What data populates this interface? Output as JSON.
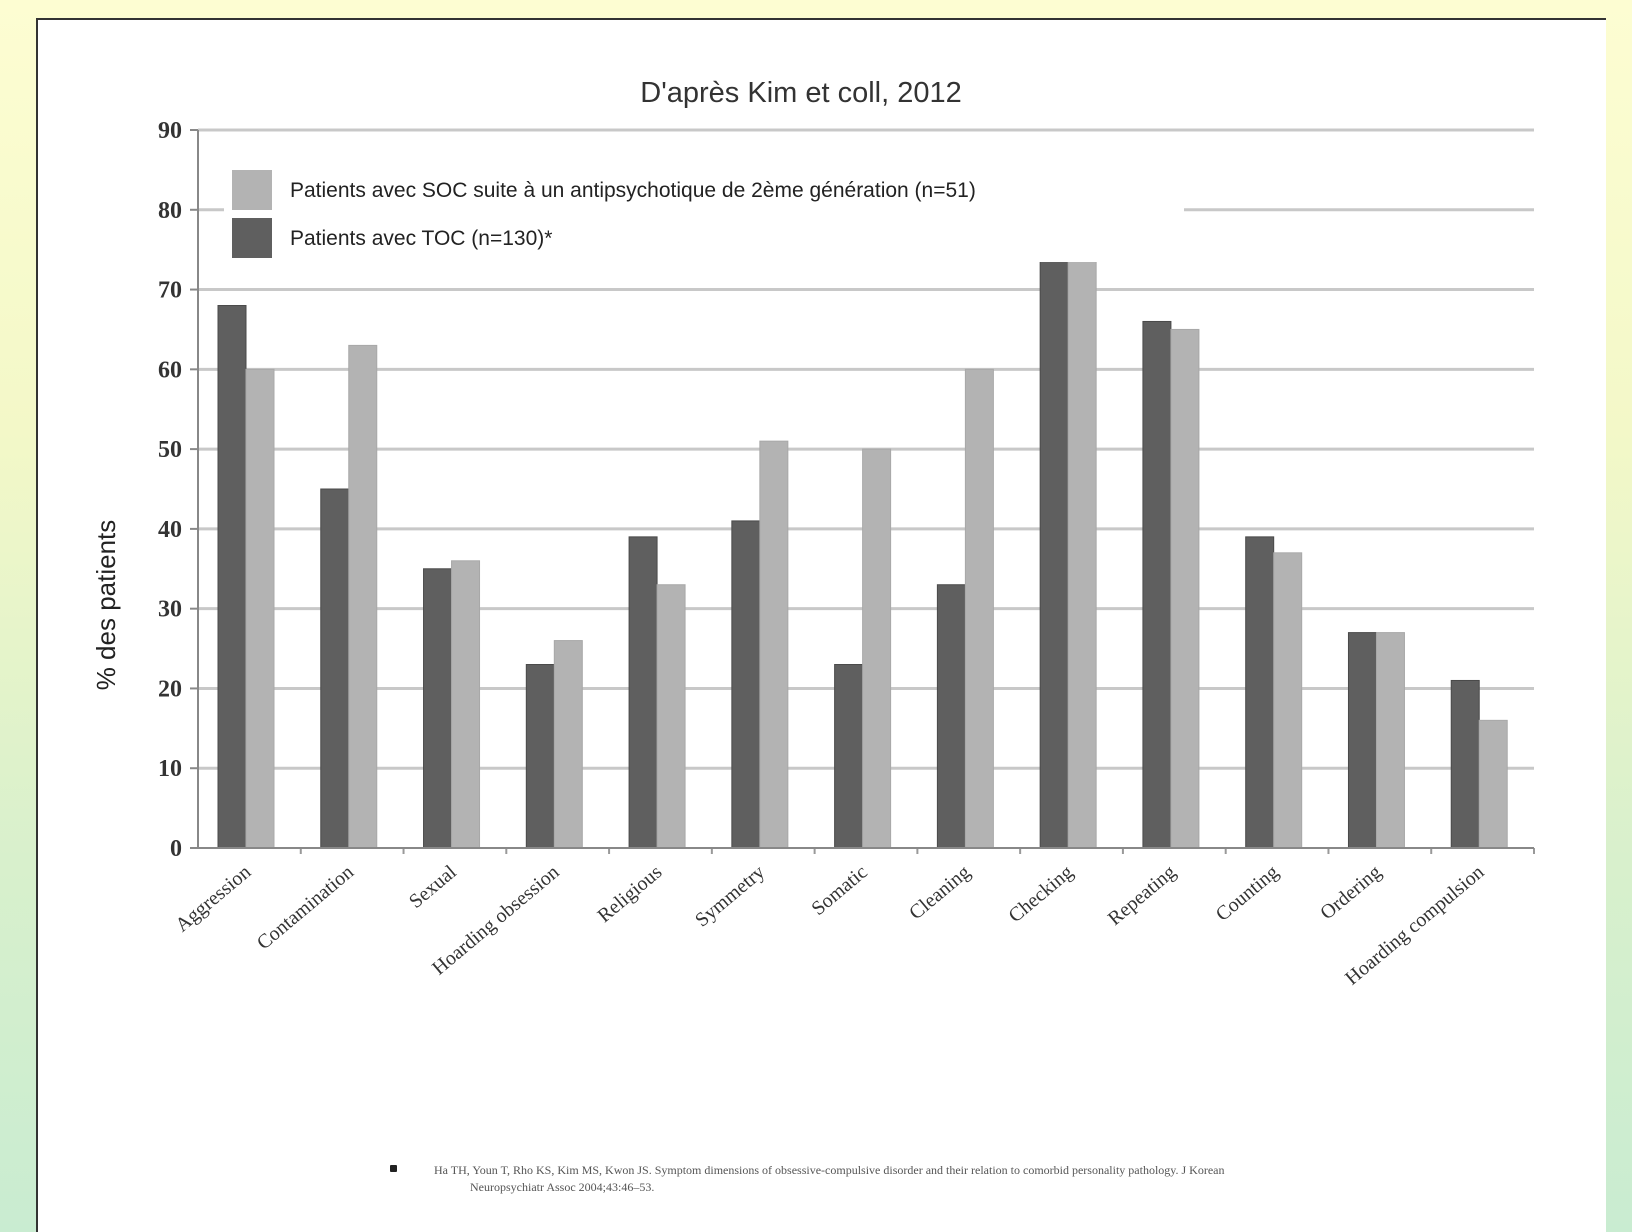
{
  "chart_data": {
    "type": "bar",
    "title": "D'après Kim et coll, 2012",
    "ylabel": "% des patients",
    "xlabel": "",
    "ylim": [
      0,
      90
    ],
    "yticks": [
      0,
      10,
      20,
      30,
      40,
      50,
      60,
      70,
      80,
      90
    ],
    "grid": true,
    "legend_position": "top-left",
    "categories": [
      "Aggression",
      "Contamination",
      "Sexual",
      "Hoarding obsession",
      "Religious",
      "Symmetry",
      "Somatic",
      "Cleaning",
      "Checking",
      "Repeating",
      "Counting",
      "Ordering",
      "Hoarding compulsion"
    ],
    "series": [
      {
        "name": "Patients avec TOC (n=130)*",
        "color": "#5f5f5f",
        "values": [
          68,
          45,
          35,
          23,
          39,
          41,
          23,
          33,
          74,
          66,
          39,
          27,
          21
        ]
      },
      {
        "name": "Patients avec SOC suite à un antipsychotique de 2ème génération (n=51)",
        "color": "#b3b3b3",
        "values": [
          60,
          63,
          36,
          26,
          33,
          51,
          50,
          60,
          80,
          65,
          37,
          27,
          16
        ]
      }
    ]
  },
  "legend": {
    "items": [
      {
        "label": "Patients avec SOC suite à un antipsychotique de 2ème génération (n=51)",
        "color": "#b3b3b3"
      },
      {
        "label": "Patients avec TOC (n=130)*",
        "color": "#5f5f5f"
      }
    ]
  },
  "reference": {
    "text": "Ha TH, Youn T, Rho KS, Kim MS, Kwon JS. Symptom dimensions of obsessive-compulsive disorder and their relation to comorbid personality pathology. J Korean Neuropsychiatr Assoc 2004;43:46–53."
  }
}
